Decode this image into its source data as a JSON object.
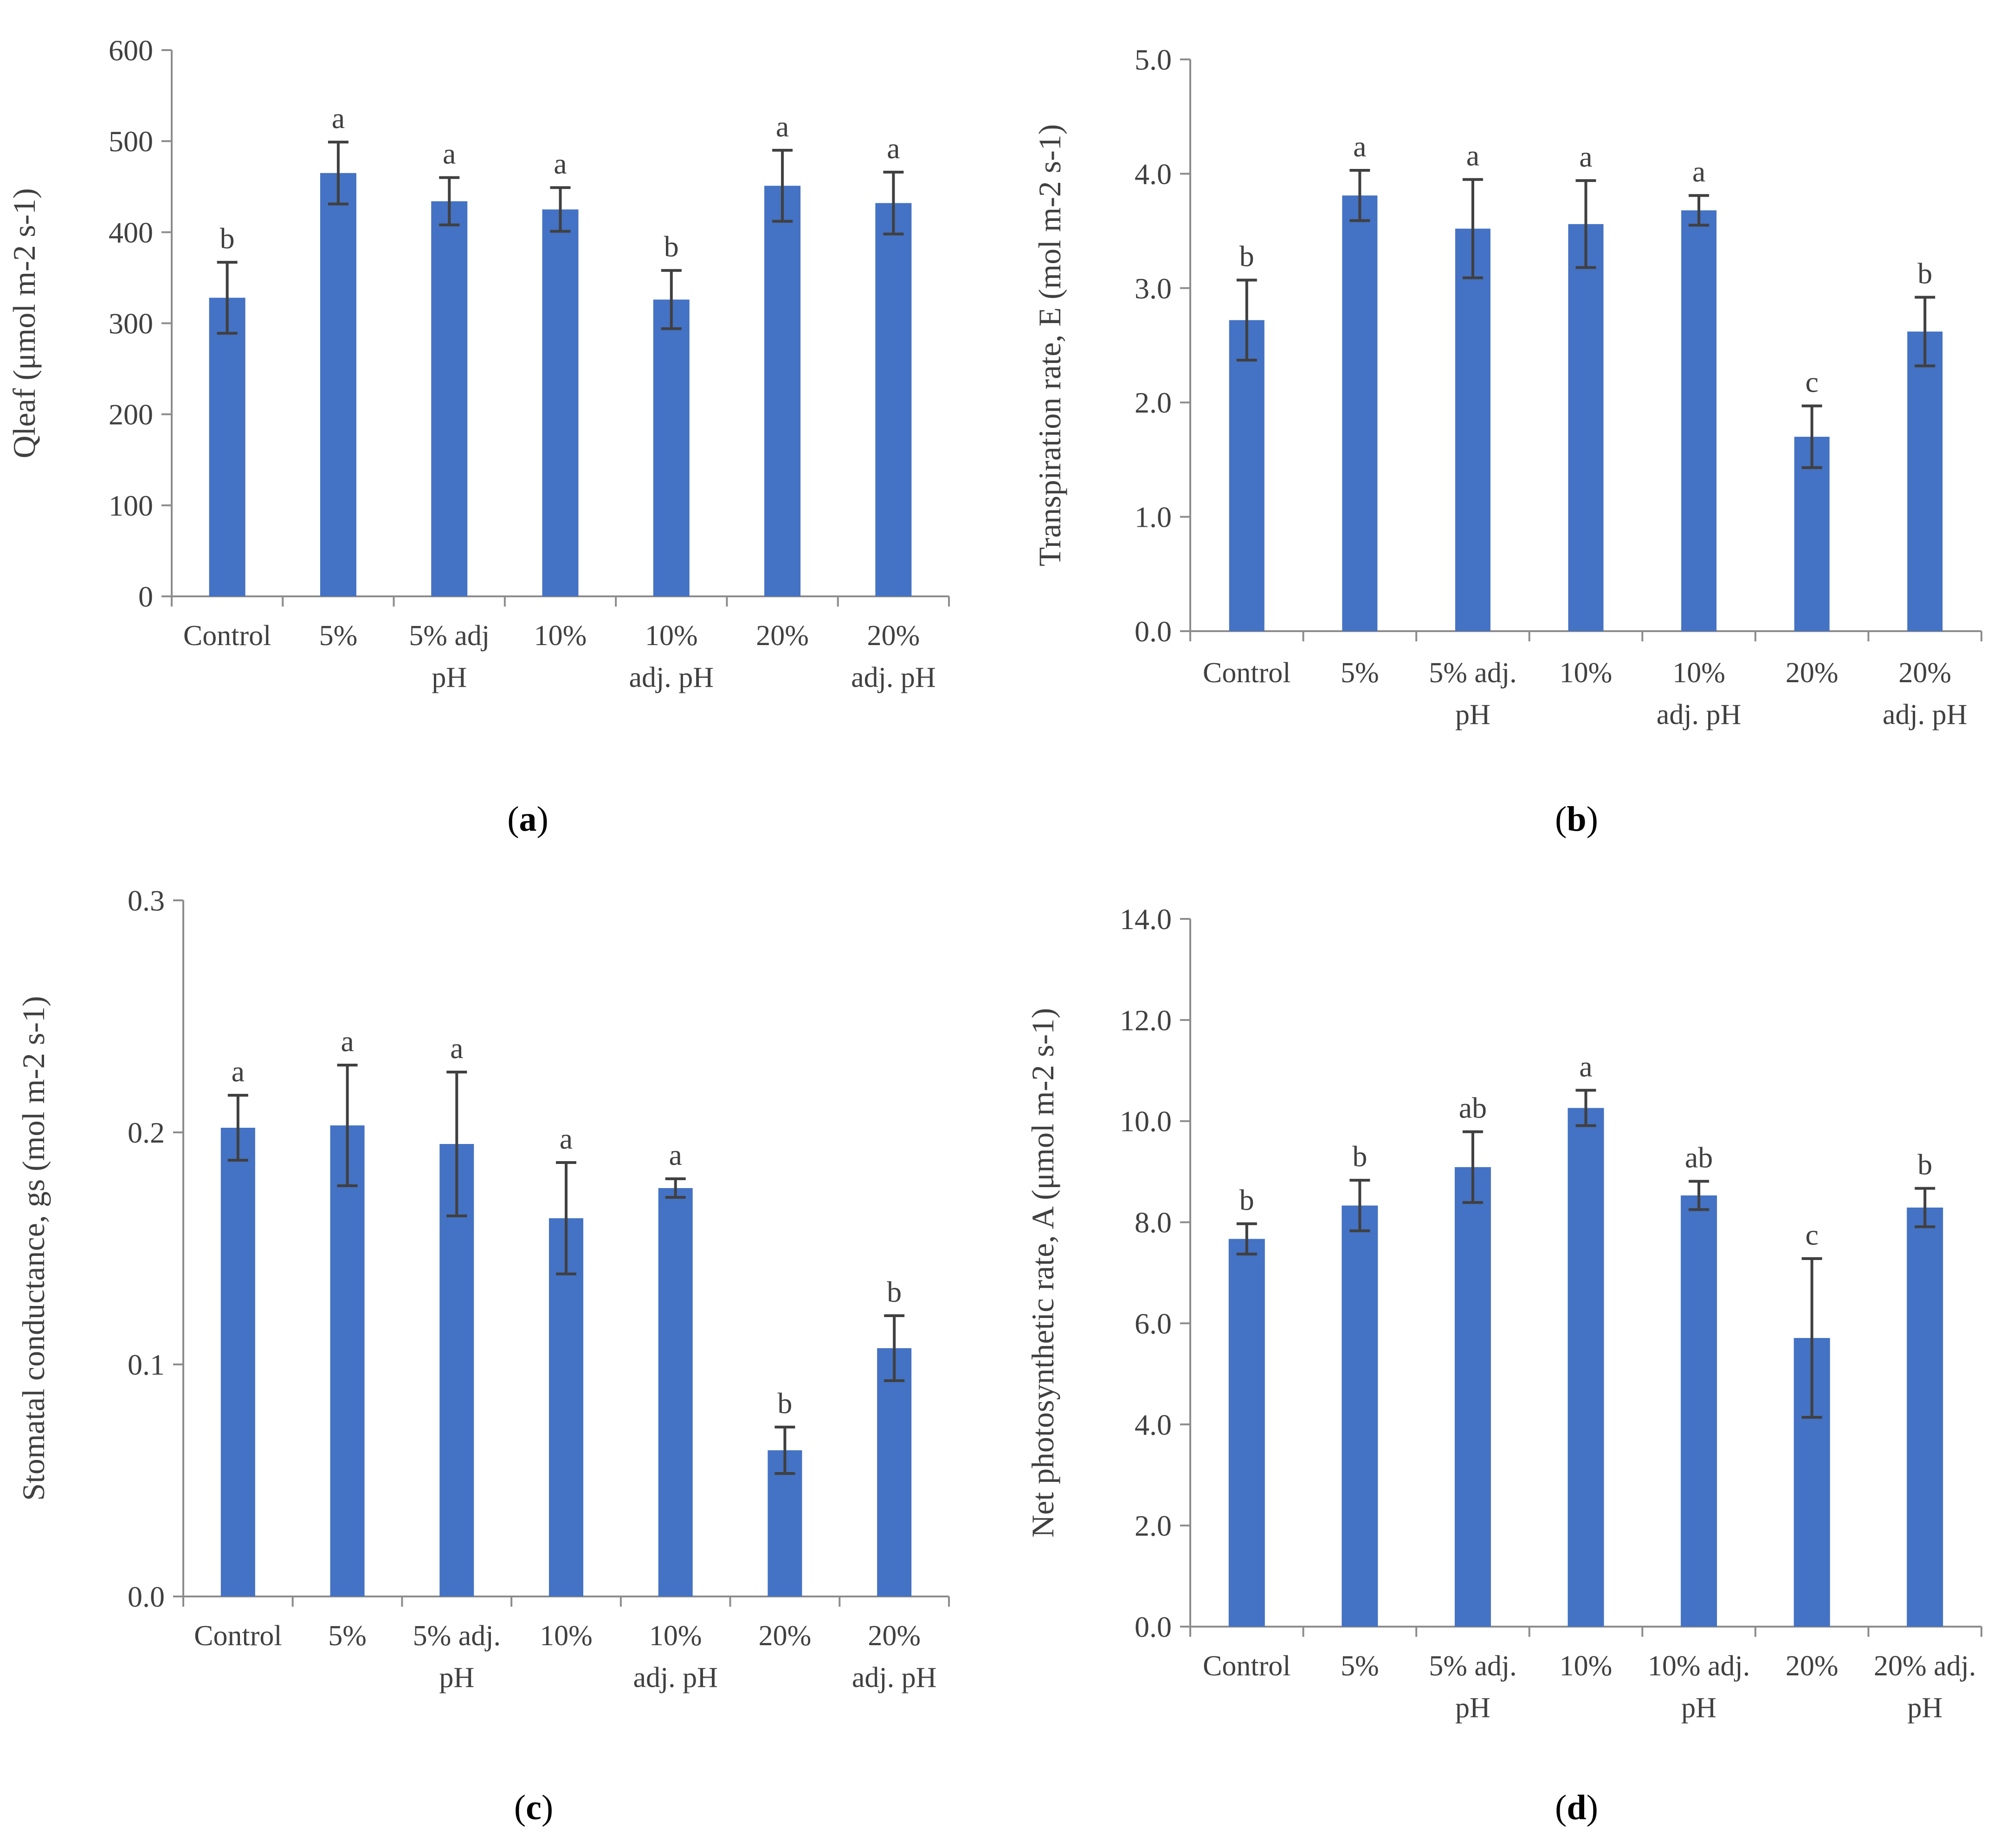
{
  "colors": {
    "bar": "#4472C4",
    "error": "#404040",
    "axis": "#8c8c8c",
    "text": "#404040"
  },
  "chart_data": [
    {
      "panel": "(a)",
      "panel_letter": "a",
      "type": "bar",
      "title": "",
      "xlabel": "",
      "ylabel": "Qleaf (μmol m-2 s-1)",
      "ylim": [
        0,
        600
      ],
      "yticks": [
        0,
        100,
        200,
        300,
        400,
        500,
        600
      ],
      "ytick_labels": [
        "0",
        "100",
        "200",
        "300",
        "400",
        "500",
        "600"
      ],
      "categories": [
        [
          "Control"
        ],
        [
          "5%"
        ],
        [
          "5% adj",
          "pH"
        ],
        [
          "10%"
        ],
        [
          "10%",
          "adj. pH"
        ],
        [
          "20%"
        ],
        [
          "20%",
          "adj. pH"
        ]
      ],
      "values": [
        328,
        465,
        434,
        425,
        326,
        451,
        432
      ],
      "errors": [
        39,
        34,
        26,
        24,
        32,
        39,
        34
      ],
      "letters": [
        "b",
        "a",
        "a",
        "a",
        "b",
        "a",
        "a"
      ],
      "grid": false
    },
    {
      "panel": "(b)",
      "panel_letter": "b",
      "type": "bar",
      "title": "",
      "xlabel": "",
      "ylabel": "Transpiration rate, E (mol m-2 s-1)",
      "ylim": [
        0,
        5
      ],
      "yticks": [
        0,
        1,
        2,
        3,
        4,
        5
      ],
      "ytick_labels": [
        "0.0",
        "1.0",
        "2.0",
        "3.0",
        "4.0",
        "5.0"
      ],
      "categories": [
        [
          "Control"
        ],
        [
          "5%"
        ],
        [
          "5% adj.",
          "pH"
        ],
        [
          "10%"
        ],
        [
          "10%",
          "adj. pH"
        ],
        [
          "20%"
        ],
        [
          "20%",
          "adj. pH"
        ]
      ],
      "values": [
        2.72,
        3.81,
        3.52,
        3.56,
        3.68,
        1.7,
        2.62
      ],
      "errors": [
        0.35,
        0.22,
        0.43,
        0.38,
        0.13,
        0.27,
        0.3
      ],
      "letters": [
        "b",
        "a",
        "a",
        "a",
        "a",
        "c",
        "b"
      ],
      "grid": false
    },
    {
      "panel": "(c)",
      "panel_letter": "c",
      "type": "bar",
      "title": "",
      "xlabel": "",
      "ylabel": "Stomatal conductance, gs (mol m-2 s-1)",
      "ylim": [
        0,
        0.3
      ],
      "yticks": [
        0,
        0.1,
        0.2,
        0.3
      ],
      "ytick_labels": [
        "0.0",
        "0.1",
        "0.2",
        "0.3"
      ],
      "categories": [
        [
          "Control"
        ],
        [
          "5%"
        ],
        [
          "5% adj.",
          "pH"
        ],
        [
          "10%"
        ],
        [
          "10%",
          "adj. pH"
        ],
        [
          "20%"
        ],
        [
          "20%",
          "adj. pH"
        ]
      ],
      "values": [
        0.202,
        0.203,
        0.195,
        0.163,
        0.176,
        0.063,
        0.107
      ],
      "errors": [
        0.014,
        0.026,
        0.031,
        0.024,
        0.004,
        0.01,
        0.014
      ],
      "letters": [
        "a",
        "a",
        "a",
        "a",
        "a",
        "b",
        "b"
      ],
      "grid": false
    },
    {
      "panel": "(d)",
      "panel_letter": "d",
      "type": "bar",
      "title": "",
      "xlabel": "",
      "ylabel": "Net photosynthetic rate, A (μmol m-2 s-1)",
      "ylim": [
        0,
        14
      ],
      "yticks": [
        0,
        2,
        4,
        6,
        8,
        10,
        12,
        14
      ],
      "ytick_labels": [
        "0.0",
        "2.0",
        "4.0",
        "6.0",
        "8.0",
        "10.0",
        "12.0",
        "14.0"
      ],
      "categories": [
        [
          "Control"
        ],
        [
          "5%"
        ],
        [
          "5% adj.",
          "pH"
        ],
        [
          "10%"
        ],
        [
          "10% adj.",
          "pH"
        ],
        [
          "20%"
        ],
        [
          "20% adj.",
          "pH"
        ]
      ],
      "values": [
        7.67,
        8.33,
        9.09,
        10.26,
        8.53,
        5.71,
        8.29
      ],
      "errors": [
        0.3,
        0.5,
        0.7,
        0.35,
        0.28,
        1.57,
        0.38
      ],
      "letters": [
        "b",
        "b",
        "ab",
        "a",
        "ab",
        "c",
        "b"
      ],
      "grid": false
    }
  ]
}
